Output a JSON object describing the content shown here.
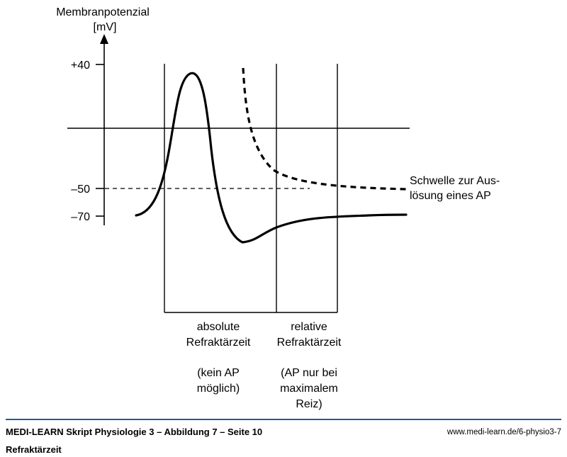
{
  "diagram": {
    "y_axis": {
      "label_line1": "Membranpotenzial",
      "label_line2": "[mV]"
    },
    "ticks": [
      {
        "value": 40,
        "label": "+40"
      },
      {
        "value": -50,
        "label": "–50"
      },
      {
        "value": -70,
        "label": "–70"
      }
    ],
    "threshold_label": {
      "line1": "Schwelle zur Aus-",
      "line2": "lösung eines AP"
    },
    "phases": {
      "absolute": {
        "line1": "absolute",
        "line2": "Refraktärzeit",
        "note_line1": "(kein AP",
        "note_line2": "möglich)"
      },
      "relative": {
        "line1": "relative",
        "line2": "Refraktärzeit",
        "note_line1": "(AP nur bei",
        "note_line2": "maximalem",
        "note_line3": "Reiz)"
      }
    }
  },
  "footer": {
    "title": "MEDI-LEARN Skript Physiologie 3 – Abbildung 7 – Seite 10",
    "subtitle": "Refraktärzeit",
    "url": "www.medi-learn.de/6-physio3-7"
  }
}
